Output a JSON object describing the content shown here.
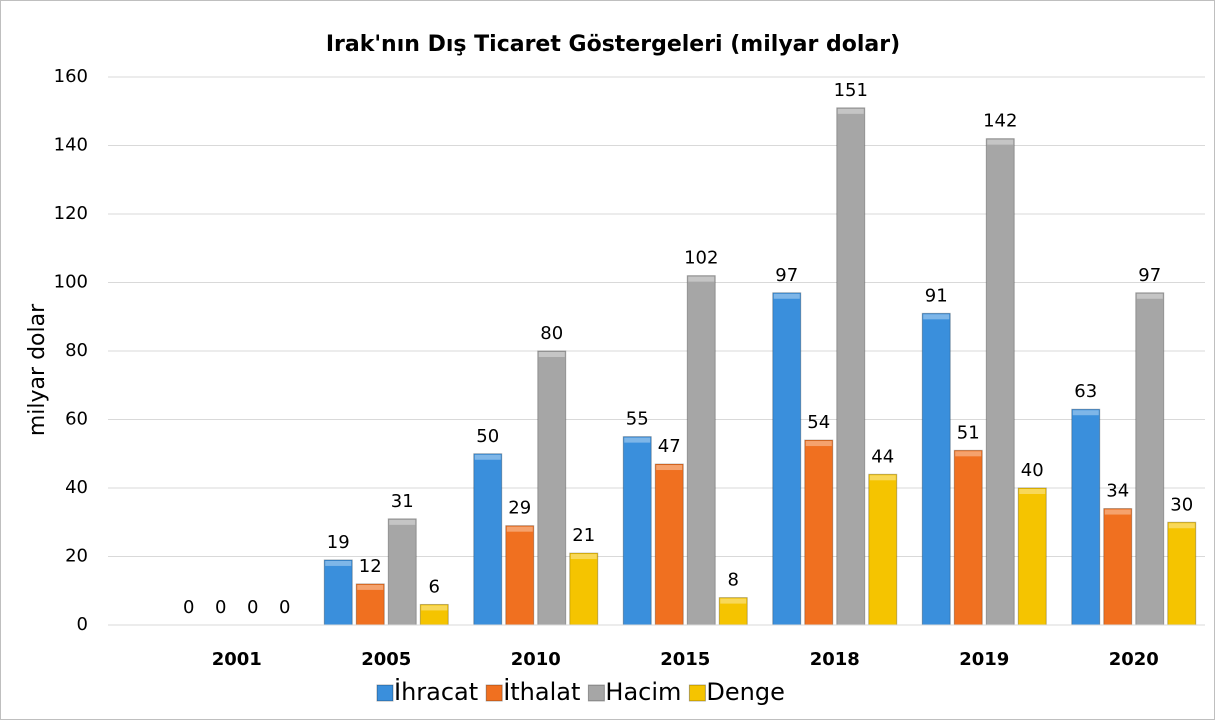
{
  "chart_data": {
    "type": "bar",
    "title": "Irak'nın Dış Ticaret Göstergeleri  (milyar dolar)",
    "y_label": "milyar dolar",
    "categories": [
      "2001",
      "2005",
      "2010",
      "2015",
      "2018",
      "2019",
      "2020"
    ],
    "series": [
      {
        "name": "İhracat",
        "color": "#3a8fdc",
        "values": [
          0,
          19,
          50,
          55,
          97,
          91,
          63
        ]
      },
      {
        "name": "İthalat",
        "color": "#f07020",
        "values": [
          0,
          12,
          29,
          47,
          54,
          51,
          34
        ]
      },
      {
        "name": "Hacim",
        "color": "#a6a6a6",
        "values": [
          0,
          31,
          80,
          102,
          151,
          142,
          97
        ]
      },
      {
        "name": "Denge",
        "color": "#f5c400",
        "values": [
          0,
          6,
          21,
          8,
          44,
          40,
          30
        ]
      }
    ],
    "ylim": [
      0,
      160
    ],
    "yticks": [
      0,
      20,
      40,
      60,
      80,
      100,
      120,
      140,
      160
    ],
    "grid": true,
    "legend": "bottom"
  }
}
